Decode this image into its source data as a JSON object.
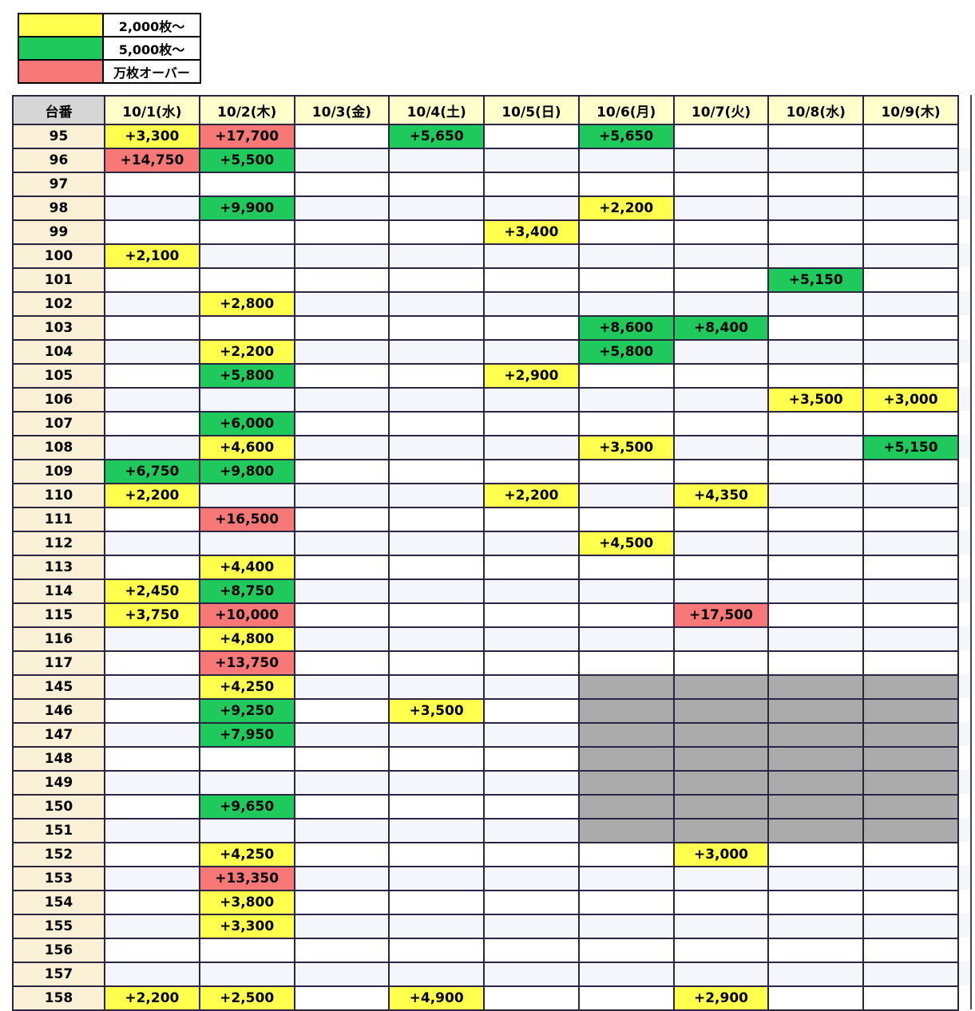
{
  "colors": {
    "yellow": "#FFFF4D",
    "green": "#1FC95C",
    "red": "#F87878",
    "gray": "#ABABAB"
  },
  "legend": {
    "items": [
      {
        "tier": "yellow",
        "label": "2,000枚〜"
      },
      {
        "tier": "green",
        "label": "5,000枚〜"
      },
      {
        "tier": "red",
        "label": "万枚オーバー"
      }
    ]
  },
  "chart_data": {
    "type": "table",
    "corner_header": "台番",
    "columns": [
      "10/1(水)",
      "10/2(木)",
      "10/3(金)",
      "10/4(土)",
      "10/5(日)",
      "10/6(月)",
      "10/7(火)",
      "10/8(水)",
      "10/9(木)"
    ],
    "rows": [
      {
        "machine": "95",
        "cells": {
          "0": {
            "v": "+3,300",
            "t": "yellow"
          },
          "1": {
            "v": "+17,700",
            "t": "red"
          },
          "3": {
            "v": "+5,650",
            "t": "green"
          },
          "5": {
            "v": "+5,650",
            "t": "green"
          }
        }
      },
      {
        "machine": "96",
        "cells": {
          "0": {
            "v": "+14,750",
            "t": "red"
          },
          "1": {
            "v": "+5,500",
            "t": "green"
          }
        }
      },
      {
        "machine": "97",
        "cells": {}
      },
      {
        "machine": "98",
        "cells": {
          "1": {
            "v": "+9,900",
            "t": "green"
          },
          "5": {
            "v": "+2,200",
            "t": "yellow"
          }
        }
      },
      {
        "machine": "99",
        "cells": {
          "4": {
            "v": "+3,400",
            "t": "yellow"
          }
        }
      },
      {
        "machine": "100",
        "cells": {
          "0": {
            "v": "+2,100",
            "t": "yellow"
          }
        }
      },
      {
        "machine": "101",
        "cells": {
          "7": {
            "v": "+5,150",
            "t": "green"
          }
        }
      },
      {
        "machine": "102",
        "cells": {
          "1": {
            "v": "+2,800",
            "t": "yellow"
          }
        }
      },
      {
        "machine": "103",
        "cells": {
          "5": {
            "v": "+8,600",
            "t": "green"
          },
          "6": {
            "v": "+8,400",
            "t": "green"
          }
        }
      },
      {
        "machine": "104",
        "cells": {
          "1": {
            "v": "+2,200",
            "t": "yellow"
          },
          "5": {
            "v": "+5,800",
            "t": "green"
          }
        }
      },
      {
        "machine": "105",
        "cells": {
          "1": {
            "v": "+5,800",
            "t": "green"
          },
          "4": {
            "v": "+2,900",
            "t": "yellow"
          }
        }
      },
      {
        "machine": "106",
        "cells": {
          "7": {
            "v": "+3,500",
            "t": "yellow"
          },
          "8": {
            "v": "+3,000",
            "t": "yellow"
          }
        }
      },
      {
        "machine": "107",
        "cells": {
          "1": {
            "v": "+6,000",
            "t": "green"
          }
        }
      },
      {
        "machine": "108",
        "cells": {
          "1": {
            "v": "+4,600",
            "t": "yellow"
          },
          "5": {
            "v": "+3,500",
            "t": "yellow"
          },
          "8": {
            "v": "+5,150",
            "t": "green"
          }
        }
      },
      {
        "machine": "109",
        "cells": {
          "0": {
            "v": "+6,750",
            "t": "green"
          },
          "1": {
            "v": "+9,800",
            "t": "green"
          }
        }
      },
      {
        "machine": "110",
        "cells": {
          "0": {
            "v": "+2,200",
            "t": "yellow"
          },
          "4": {
            "v": "+2,200",
            "t": "yellow"
          },
          "6": {
            "v": "+4,350",
            "t": "yellow"
          }
        }
      },
      {
        "machine": "111",
        "cells": {
          "1": {
            "v": "+16,500",
            "t": "red"
          }
        }
      },
      {
        "machine": "112",
        "cells": {
          "5": {
            "v": "+4,500",
            "t": "yellow"
          }
        }
      },
      {
        "machine": "113",
        "cells": {
          "1": {
            "v": "+4,400",
            "t": "yellow"
          }
        }
      },
      {
        "machine": "114",
        "cells": {
          "0": {
            "v": "+2,450",
            "t": "yellow"
          },
          "1": {
            "v": "+8,750",
            "t": "green"
          }
        }
      },
      {
        "machine": "115",
        "cells": {
          "0": {
            "v": "+3,750",
            "t": "yellow"
          },
          "1": {
            "v": "+10,000",
            "t": "red"
          },
          "6": {
            "v": "+17,500",
            "t": "red"
          }
        }
      },
      {
        "machine": "116",
        "cells": {
          "1": {
            "v": "+4,800",
            "t": "yellow"
          }
        }
      },
      {
        "machine": "117",
        "cells": {
          "1": {
            "v": "+13,750",
            "t": "red"
          }
        }
      },
      {
        "machine": "145",
        "cells": {
          "1": {
            "v": "+4,250",
            "t": "yellow"
          }
        },
        "gray_cols": [
          5,
          6,
          7,
          8
        ]
      },
      {
        "machine": "146",
        "cells": {
          "1": {
            "v": "+9,250",
            "t": "green"
          },
          "3": {
            "v": "+3,500",
            "t": "yellow"
          }
        },
        "gray_cols": [
          5,
          6,
          7,
          8
        ]
      },
      {
        "machine": "147",
        "cells": {
          "1": {
            "v": "+7,950",
            "t": "green"
          }
        },
        "gray_cols": [
          5,
          6,
          7,
          8
        ]
      },
      {
        "machine": "148",
        "cells": {},
        "gray_cols": [
          5,
          6,
          7,
          8
        ]
      },
      {
        "machine": "149",
        "cells": {},
        "gray_cols": [
          5,
          6,
          7,
          8
        ]
      },
      {
        "machine": "150",
        "cells": {
          "1": {
            "v": "+9,650",
            "t": "green"
          }
        },
        "gray_cols": [
          5,
          6,
          7,
          8
        ]
      },
      {
        "machine": "151",
        "cells": {},
        "gray_cols": [
          5,
          6,
          7,
          8
        ]
      },
      {
        "machine": "152",
        "cells": {
          "1": {
            "v": "+4,250",
            "t": "yellow"
          },
          "6": {
            "v": "+3,000",
            "t": "yellow"
          }
        }
      },
      {
        "machine": "153",
        "cells": {
          "1": {
            "v": "+13,350",
            "t": "red"
          }
        }
      },
      {
        "machine": "154",
        "cells": {
          "1": {
            "v": "+3,800",
            "t": "yellow"
          }
        }
      },
      {
        "machine": "155",
        "cells": {
          "1": {
            "v": "+3,300",
            "t": "yellow"
          }
        }
      },
      {
        "machine": "156",
        "cells": {}
      },
      {
        "machine": "157",
        "cells": {}
      },
      {
        "machine": "158",
        "cells": {
          "0": {
            "v": "+2,200",
            "t": "yellow"
          },
          "1": {
            "v": "+2,500",
            "t": "yellow"
          },
          "3": {
            "v": "+4,900",
            "t": "yellow"
          },
          "6": {
            "v": "+2,900",
            "t": "yellow"
          }
        }
      }
    ]
  }
}
